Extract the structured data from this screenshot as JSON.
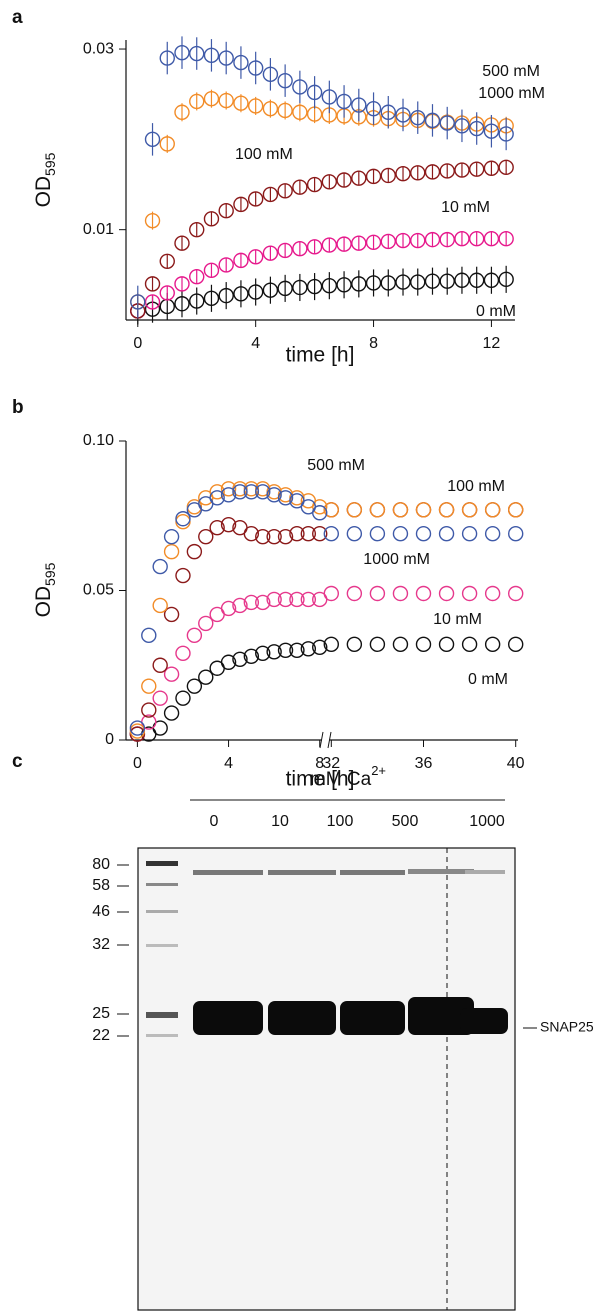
{
  "chart_data": [
    {
      "type": "scatter",
      "panel_label": "a",
      "x_label": "time [h]",
      "y_label": "OD",
      "y_label_sub": "595",
      "xlim": [
        -0.4,
        12.8
      ],
      "xticks": [
        0,
        4,
        8,
        12
      ],
      "ylim": [
        0,
        0.031
      ],
      "yticks": [
        0.01,
        0.03
      ],
      "x": [
        0,
        0.5,
        1,
        1.5,
        2,
        2.5,
        3,
        3.5,
        4,
        4.5,
        5,
        5.5,
        6,
        6.5,
        7,
        7.5,
        8,
        8.5,
        9,
        9.5,
        10,
        10.5,
        11,
        11.5,
        12,
        12.5
      ],
      "series": [
        {
          "name": "0 mM",
          "color": "#111111",
          "values": [
            0.001,
            0.0012,
            0.0015,
            0.0018,
            0.0021,
            0.0024,
            0.0027,
            0.0029,
            0.0031,
            0.0033,
            0.0035,
            0.0036,
            0.0037,
            0.0038,
            0.0039,
            0.004,
            0.0041,
            0.0041,
            0.0042,
            0.0042,
            0.0043,
            0.0043,
            0.0044,
            0.0044,
            0.0044,
            0.0045
          ],
          "errors": [
            0.0015,
            0.0015,
            0.0015,
            0.0015,
            0.0015,
            0.0015,
            0.0015,
            0.0015,
            0.0015,
            0.0015,
            0.0015,
            0.0015,
            0.0015,
            0.0015,
            0.0015,
            0.0015,
            0.0015,
            0.0015,
            0.0015,
            0.0015,
            0.0015,
            0.0015,
            0.0015,
            0.0015,
            0.0015,
            0.0015
          ]
        },
        {
          "name": "10 mM",
          "color": "#e6198c",
          "values": [
            0.001,
            0.002,
            0.003,
            0.004,
            0.0048,
            0.0055,
            0.0061,
            0.0066,
            0.007,
            0.0074,
            0.0077,
            0.0079,
            0.0081,
            0.0083,
            0.0084,
            0.0085,
            0.0086,
            0.0087,
            0.0088,
            0.0088,
            0.0089,
            0.0089,
            0.009,
            0.009,
            0.009,
            0.009
          ],
          "errors": [
            0.0008,
            0.0008,
            0.0008,
            0.0008,
            0.0008,
            0.0008,
            0.0008,
            0.0008,
            0.0008,
            0.0008,
            0.0008,
            0.0008,
            0.0008,
            0.0008,
            0.0008,
            0.0008,
            0.0008,
            0.0008,
            0.0008,
            0.0008,
            0.0008,
            0.0008,
            0.0008,
            0.0008,
            0.0008,
            0.0008
          ]
        },
        {
          "name": "100 mM",
          "color": "#8b1a1a",
          "values": [
            0.001,
            0.004,
            0.0065,
            0.0085,
            0.01,
            0.0112,
            0.0121,
            0.0128,
            0.0134,
            0.0139,
            0.0143,
            0.0147,
            0.015,
            0.0153,
            0.0155,
            0.0157,
            0.0159,
            0.016,
            0.0162,
            0.0163,
            0.0164,
            0.0165,
            0.0166,
            0.0167,
            0.0168,
            0.0169
          ],
          "errors": [
            0.0008,
            0.0008,
            0.0008,
            0.0008,
            0.0008,
            0.0008,
            0.0008,
            0.0008,
            0.0008,
            0.0008,
            0.0008,
            0.0008,
            0.0008,
            0.0008,
            0.0008,
            0.0008,
            0.0008,
            0.0008,
            0.0008,
            0.0008,
            0.0008,
            0.0008,
            0.0008,
            0.0008,
            0.0008,
            0.0008
          ]
        },
        {
          "name": "500 mM",
          "color": "#f28c28",
          "values": [
            0.002,
            0.011,
            0.0195,
            0.023,
            0.0242,
            0.0245,
            0.0243,
            0.024,
            0.0237,
            0.0234,
            0.0232,
            0.023,
            0.0228,
            0.0227,
            0.0226,
            0.0225,
            0.0224,
            0.0223,
            0.0222,
            0.0221,
            0.022,
            0.0219,
            0.0218,
            0.0217,
            0.0216,
            0.0215
          ],
          "errors": [
            0.001,
            0.001,
            0.001,
            0.001,
            0.001,
            0.001,
            0.001,
            0.001,
            0.001,
            0.001,
            0.001,
            0.001,
            0.001,
            0.001,
            0.001,
            0.001,
            0.001,
            0.001,
            0.001,
            0.001,
            0.001,
            0.001,
            0.001,
            0.001,
            0.001,
            0.001
          ]
        },
        {
          "name": "1000 mM",
          "color": "#3f5aa8",
          "values": [
            0.002,
            0.02,
            0.029,
            0.0296,
            0.0295,
            0.0293,
            0.029,
            0.0285,
            0.0279,
            0.0272,
            0.0265,
            0.0258,
            0.0252,
            0.0247,
            0.0242,
            0.0238,
            0.0234,
            0.023,
            0.0227,
            0.0224,
            0.0221,
            0.0218,
            0.0215,
            0.0212,
            0.0209,
            0.0206
          ],
          "errors": [
            0.0018,
            0.0018,
            0.0018,
            0.0018,
            0.0018,
            0.0018,
            0.0018,
            0.0018,
            0.0018,
            0.0018,
            0.0018,
            0.0018,
            0.0018,
            0.0018,
            0.0018,
            0.0018,
            0.0018,
            0.0018,
            0.0018,
            0.0018,
            0.0018,
            0.0018,
            0.0018,
            0.0018,
            0.0018,
            0.0018
          ]
        }
      ]
    },
    {
      "type": "scatter",
      "panel_label": "b",
      "x_label": "time [h]",
      "y_label": "OD",
      "y_label_sub": "595",
      "xlim": [
        [
          -0.5,
          8.1
        ],
        [
          31.9,
          40.1
        ]
      ],
      "xticks": [
        0,
        4,
        8,
        32,
        36,
        40
      ],
      "ylim": [
        0,
        0.1
      ],
      "yticks": [
        0,
        0.05,
        {
          "value": 0.1,
          "label": "0.10"
        }
      ],
      "x": [
        0,
        0.5,
        1,
        1.5,
        2,
        2.5,
        3,
        3.5,
        4,
        4.5,
        5,
        5.5,
        6,
        6.5,
        7,
        7.5,
        8,
        32,
        33,
        34,
        35,
        36,
        37,
        38,
        39,
        40
      ],
      "series": [
        {
          "name": "0 mM",
          "color": "#111111",
          "values": [
            0.002,
            0.002,
            0.004,
            0.009,
            0.014,
            0.018,
            0.021,
            0.024,
            0.026,
            0.027,
            0.028,
            0.029,
            0.0295,
            0.03,
            0.03,
            0.0305,
            0.031,
            0.032,
            0.032,
            0.032,
            0.032,
            0.032,
            0.032,
            0.032,
            0.032,
            0.032
          ]
        },
        {
          "name": "10 mM",
          "color": "#e6388c",
          "values": [
            0.002,
            0.006,
            0.014,
            0.022,
            0.029,
            0.035,
            0.039,
            0.042,
            0.044,
            0.045,
            0.046,
            0.046,
            0.047,
            0.047,
            0.047,
            0.047,
            0.047,
            0.049,
            0.049,
            0.049,
            0.049,
            0.049,
            0.049,
            0.049,
            0.049,
            0.049
          ]
        },
        {
          "name": "100 mM",
          "color": "#8b1a1a",
          "values": [
            0.002,
            0.01,
            0.025,
            0.042,
            0.055,
            0.063,
            0.068,
            0.071,
            0.072,
            0.071,
            0.069,
            0.068,
            0.068,
            0.068,
            0.069,
            0.069,
            0.069,
            0.077,
            0.077,
            0.077,
            0.077,
            0.077,
            0.077,
            0.077,
            0.077,
            0.077
          ]
        },
        {
          "name": "500 mM",
          "color": "#f28c28",
          "values": [
            0.003,
            0.018,
            0.045,
            0.063,
            0.073,
            0.078,
            0.081,
            0.083,
            0.084,
            0.084,
            0.084,
            0.084,
            0.083,
            0.082,
            0.081,
            0.08,
            0.078,
            0.077,
            0.077,
            0.077,
            0.077,
            0.077,
            0.077,
            0.077,
            0.077,
            0.077
          ]
        },
        {
          "name": "1000 mM",
          "color": "#3f5aa8",
          "values": [
            0.004,
            0.035,
            0.058,
            0.068,
            0.074,
            0.077,
            0.079,
            0.081,
            0.082,
            0.083,
            0.083,
            0.083,
            0.082,
            0.081,
            0.08,
            0.078,
            0.076,
            0.069,
            0.069,
            0.069,
            0.069,
            0.069,
            0.069,
            0.069,
            0.069,
            0.069
          ]
        }
      ]
    }
  ],
  "gel": {
    "panel_label": "c",
    "title": "mM Ca",
    "title_sup": "2+",
    "lanes": [
      "0",
      "10",
      "100",
      "500",
      "1000"
    ],
    "markers": [
      "80",
      "58",
      "46",
      "32",
      "25",
      "22"
    ],
    "band_label": "SNAP25"
  }
}
